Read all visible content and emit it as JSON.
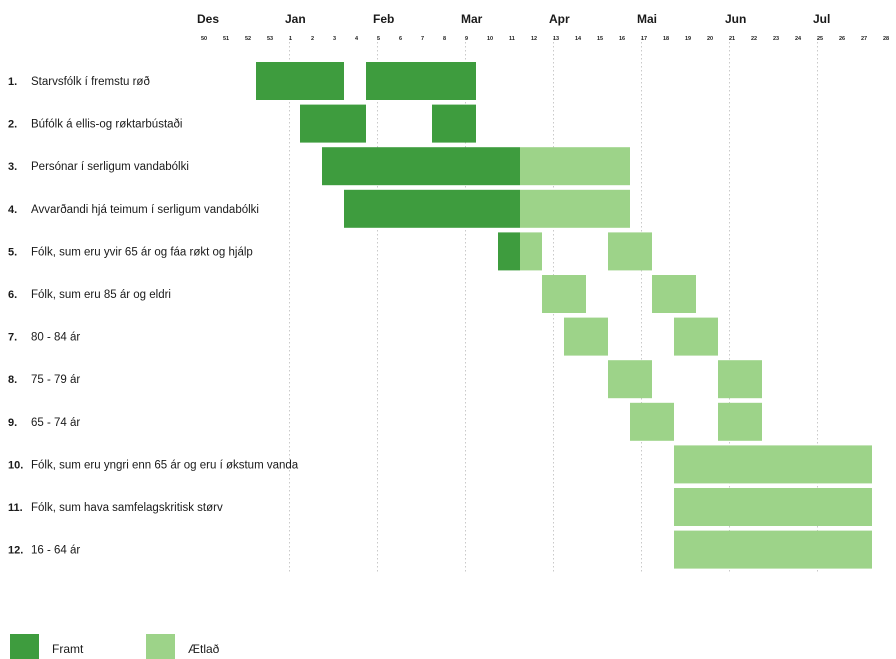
{
  "chart_data": {
    "type": "gantt",
    "week_labels": [
      "50",
      "51",
      "52",
      "53",
      "1",
      "2",
      "3",
      "4",
      "5",
      "6",
      "7",
      "8",
      "9",
      "10",
      "11",
      "12",
      "13",
      "14",
      "15",
      "16",
      "17",
      "18",
      "19",
      "20",
      "21",
      "22",
      "23",
      "24",
      "25",
      "26",
      "27",
      "28"
    ],
    "months": [
      {
        "label": "Des",
        "week_index": 0
      },
      {
        "label": "Jan",
        "week_index": 4
      },
      {
        "label": "Feb",
        "week_index": 8
      },
      {
        "label": "Mar",
        "week_index": 12
      },
      {
        "label": "Apr",
        "week_index": 16
      },
      {
        "label": "Mai",
        "week_index": 20
      },
      {
        "label": "Jun",
        "week_index": 24
      },
      {
        "label": "Jul",
        "week_index": 28
      }
    ],
    "gridline_weeks": [
      "1",
      "5",
      "9",
      "13",
      "17",
      "21",
      "25"
    ],
    "rows": [
      {
        "num": "1.",
        "label": "Starvsfólk í fremstu røð",
        "framt": [
          [
            2.5,
            6.5
          ],
          [
            7.5,
            12.5
          ]
        ],
        "aetlad": []
      },
      {
        "num": "2.",
        "label": "Búfólk á ellis-og røktarbústaði",
        "framt": [
          [
            4.5,
            7.5
          ],
          [
            10.5,
            12.5
          ]
        ],
        "aetlad": []
      },
      {
        "num": "3.",
        "label": "Persónar í serligum vandabólki",
        "framt": [
          [
            5.5,
            14.5
          ]
        ],
        "aetlad": [
          [
            14.5,
            19.5
          ]
        ]
      },
      {
        "num": "4.",
        "label": "Avvarðandi hjá teimum í serligum vandabólki",
        "framt": [
          [
            6.5,
            14.5
          ]
        ],
        "aetlad": [
          [
            14.5,
            19.5
          ]
        ]
      },
      {
        "num": "5.",
        "label": "Fólk, sum eru yvir 65 ár og fáa røkt og hjálp",
        "framt": [
          [
            13.5,
            14.5
          ]
        ],
        "aetlad": [
          [
            14.5,
            15.5
          ],
          [
            18.5,
            20.5
          ]
        ]
      },
      {
        "num": "6.",
        "label": "Fólk, sum eru 85 ár og eldri",
        "framt": [],
        "aetlad": [
          [
            15.5,
            17.5
          ],
          [
            20.5,
            22.5
          ]
        ]
      },
      {
        "num": "7.",
        "label": "80 - 84 ár",
        "framt": [],
        "aetlad": [
          [
            16.5,
            18.5
          ],
          [
            21.5,
            23.5
          ]
        ]
      },
      {
        "num": "8.",
        "label": "75 - 79 ár",
        "framt": [],
        "aetlad": [
          [
            18.5,
            20.5
          ],
          [
            23.5,
            25.5
          ]
        ]
      },
      {
        "num": "9.",
        "label": "65 - 74 ár",
        "framt": [],
        "aetlad": [
          [
            19.5,
            21.5
          ],
          [
            23.5,
            25.5
          ]
        ]
      },
      {
        "num": "10.",
        "label": "Fólk, sum eru yngri enn 65 ár og eru í økstum vanda",
        "framt": [],
        "aetlad": [
          [
            21.5,
            30.5
          ]
        ]
      },
      {
        "num": "11.",
        "label": "Fólk, sum hava samfelagskritisk størv",
        "framt": [],
        "aetlad": [
          [
            21.5,
            30.5
          ]
        ]
      },
      {
        "num": "12.",
        "label": "16 - 64 ár",
        "framt": [],
        "aetlad": [
          [
            21.5,
            30.5
          ]
        ]
      }
    ],
    "legend": [
      {
        "key": "framt",
        "label": "Framt",
        "color": "#3e9c3e"
      },
      {
        "key": "aetlad",
        "label": "Ætlað",
        "color": "#9dd389"
      }
    ]
  }
}
